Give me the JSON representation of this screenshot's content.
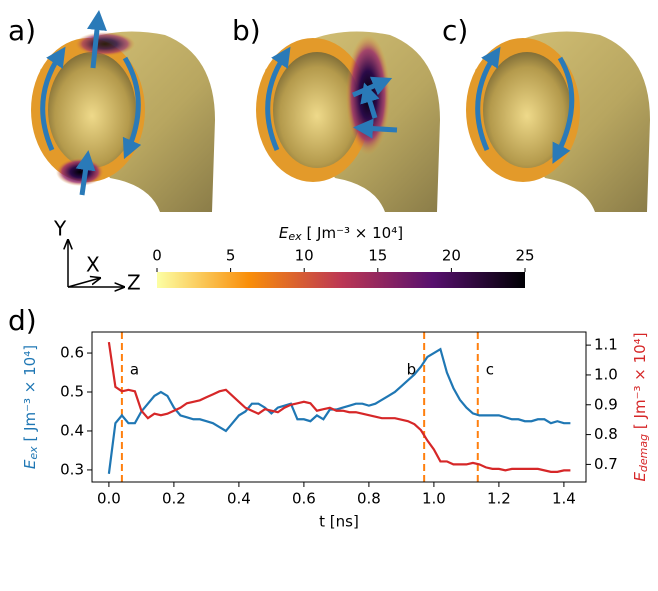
{
  "panel_labels": [
    "a)",
    "b)",
    "c)",
    "d)"
  ],
  "axis_triad": {
    "y": "Y",
    "x": "X",
    "z": "Z"
  },
  "chart_data": [
    {
      "type": "colorbar",
      "label": [
        "E",
        "ex",
        " [ Jm⁻³ × 10⁴]"
      ],
      "colors": [
        "#fcffa4",
        "#f98e09",
        "#bc3754",
        "#57106e",
        "#000004"
      ],
      "xlim": [
        0,
        25
      ],
      "xticks": [
        0,
        5,
        10,
        15,
        20,
        25
      ]
    },
    {
      "type": "line",
      "xlabel": "t [ns]",
      "x": [
        0,
        0.02,
        0.04,
        0.06,
        0.08,
        0.1,
        0.12,
        0.14,
        0.16,
        0.18,
        0.2,
        0.22,
        0.24,
        0.26,
        0.28,
        0.3,
        0.32,
        0.34,
        0.36,
        0.38,
        0.4,
        0.42,
        0.44,
        0.46,
        0.48,
        0.5,
        0.52,
        0.54,
        0.56,
        0.58,
        0.6,
        0.62,
        0.64,
        0.66,
        0.68,
        0.7,
        0.72,
        0.74,
        0.76,
        0.78,
        0.8,
        0.82,
        0.84,
        0.86,
        0.88,
        0.9,
        0.92,
        0.94,
        0.96,
        0.98,
        1,
        1.02,
        1.04,
        1.06,
        1.08,
        1.1,
        1.12,
        1.14,
        1.16,
        1.18,
        1.2,
        1.22,
        1.24,
        1.26,
        1.28,
        1.3,
        1.32,
        1.34,
        1.36,
        1.38,
        1.4,
        1.42
      ],
      "series": [
        {
          "name": [
            "E",
            "ex",
            " [ Jm⁻³ × 10⁴]"
          ],
          "color": "#1f77b4",
          "values": [
            0.29,
            0.42,
            0.44,
            0.42,
            0.42,
            0.45,
            0.47,
            0.49,
            0.5,
            0.49,
            0.46,
            0.44,
            0.435,
            0.43,
            0.43,
            0.425,
            0.42,
            0.41,
            0.4,
            0.42,
            0.44,
            0.45,
            0.47,
            0.47,
            0.46,
            0.445,
            0.46,
            0.465,
            0.47,
            0.43,
            0.43,
            0.425,
            0.44,
            0.43,
            0.455,
            0.455,
            0.46,
            0.465,
            0.47,
            0.47,
            0.465,
            0.47,
            0.48,
            0.49,
            0.5,
            0.515,
            0.53,
            0.545,
            0.565,
            0.59,
            0.6,
            0.61,
            0.55,
            0.51,
            0.48,
            0.46,
            0.445,
            0.44,
            0.44,
            0.44,
            0.44,
            0.435,
            0.43,
            0.43,
            0.425,
            0.425,
            0.43,
            0.43,
            0.42,
            0.425,
            0.42,
            0.42
          ]
        },
        {
          "name": [
            "E",
            "demag",
            " [ Jm⁻³ × 10⁴]"
          ],
          "color": "#d62728",
          "axis": "y2",
          "values": [
            1.11,
            0.96,
            0.945,
            0.95,
            0.945,
            0.88,
            0.855,
            0.87,
            0.865,
            0.87,
            0.88,
            0.89,
            0.905,
            0.91,
            0.915,
            0.925,
            0.935,
            0.945,
            0.95,
            0.93,
            0.91,
            0.89,
            0.88,
            0.87,
            0.885,
            0.88,
            0.875,
            0.89,
            0.9,
            0.905,
            0.91,
            0.905,
            0.88,
            0.885,
            0.89,
            0.88,
            0.88,
            0.875,
            0.875,
            0.87,
            0.865,
            0.86,
            0.855,
            0.855,
            0.855,
            0.85,
            0.845,
            0.835,
            0.815,
            0.78,
            0.75,
            0.71,
            0.71,
            0.7,
            0.7,
            0.7,
            0.705,
            0.7,
            0.69,
            0.685,
            0.685,
            0.68,
            0.685,
            0.685,
            0.685,
            0.685,
            0.685,
            0.68,
            0.675,
            0.675,
            0.68,
            0.68
          ]
        }
      ],
      "markers": [
        {
          "x": 0.04,
          "label": "a"
        },
        {
          "x": 0.97,
          "label": "b"
        },
        {
          "x": 1.135,
          "label": "c"
        }
      ],
      "marker_color": "#ff7f0e",
      "xlim": [
        -0.052,
        1.468
      ],
      "xticks": [
        {
          "value": 0,
          "label": "0.0"
        },
        0.2,
        0.4,
        0.6,
        0.8,
        {
          "value": 1,
          "label": "1.0"
        },
        1.2,
        1.4
      ],
      "ylim": [
        0.269,
        0.654
      ],
      "yticks": [
        0.3,
        0.4,
        0.5,
        0.6
      ],
      "y2lim": [
        0.641,
        1.144
      ],
      "y2ticks": [
        0.7,
        0.8,
        0.9,
        {
          "value": 1,
          "label": "1.0"
        },
        1.1
      ]
    }
  ]
}
